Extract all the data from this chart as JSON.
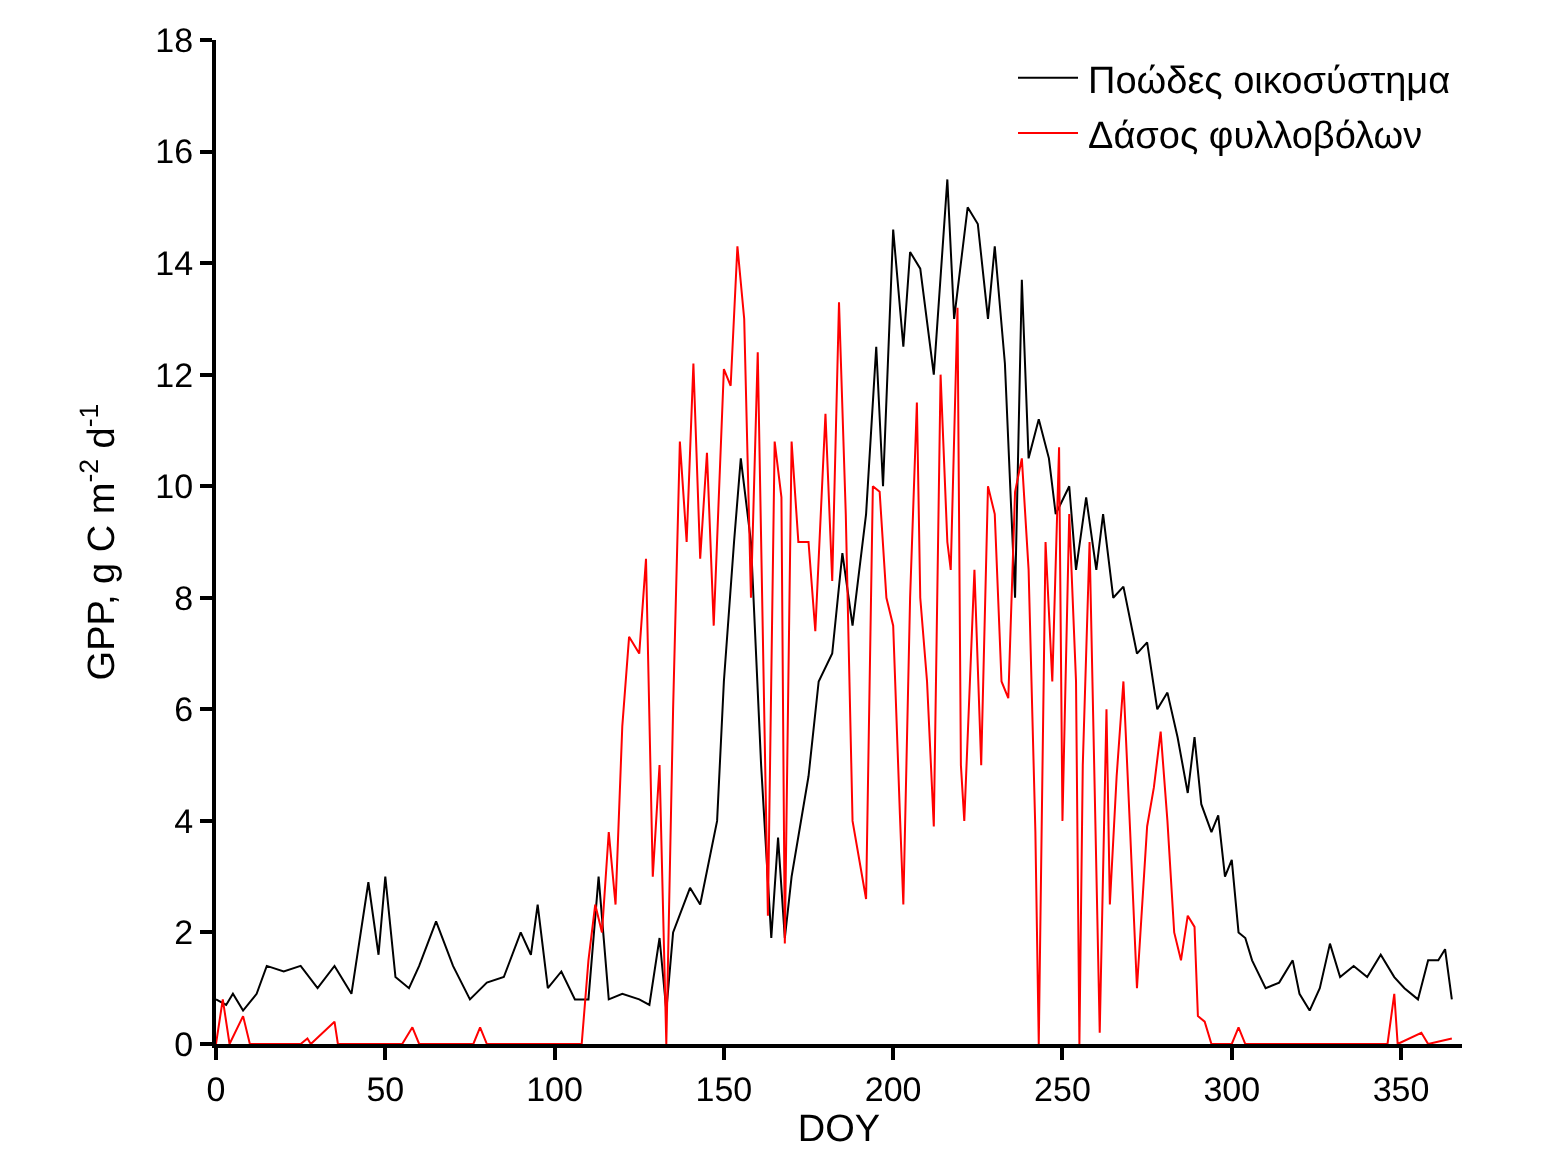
{
  "chart_data": {
    "type": "line",
    "xlabel": "DOY",
    "ylabel": "GPP, g C m$^{-2}$ d$^{-1}$",
    "xlim": [
      0,
      368
    ],
    "xticks": [
      0,
      50,
      100,
      150,
      200,
      250,
      300,
      350
    ],
    "ylim": [
      0,
      18
    ],
    "yticks": [
      0,
      2,
      4,
      6,
      8,
      10,
      12,
      14,
      16,
      18
    ],
    "legend": "top right",
    "marker": "none",
    "line_style": "solid",
    "series": [
      {
        "name": "Ποώδες οικοσύστημα",
        "color": "#000000",
        "x": [
          0,
          3,
          5,
          8,
          12,
          15,
          20,
          25,
          30,
          35,
          40,
          45,
          48,
          50,
          53,
          57,
          60,
          65,
          70,
          75,
          80,
          85,
          90,
          93,
          95,
          98,
          102,
          106,
          110,
          113,
          116,
          120,
          125,
          128,
          131,
          133,
          135,
          140,
          143,
          148,
          150,
          153,
          155,
          158,
          161,
          164,
          166,
          168,
          170,
          175,
          178,
          182,
          185,
          188,
          192,
          195,
          197,
          200,
          203,
          205,
          208,
          212,
          216,
          218,
          222,
          225,
          228,
          230,
          233,
          236,
          238,
          240,
          243,
          246,
          248,
          252,
          254,
          257,
          260,
          262,
          265,
          268,
          272,
          275,
          278,
          281,
          284,
          287,
          289,
          291,
          294,
          296,
          298,
          300,
          302,
          304,
          306,
          310,
          314,
          318,
          320,
          323,
          326,
          329,
          332,
          336,
          340,
          344,
          348,
          351,
          355,
          358,
          361,
          363,
          365
        ],
        "values": [
          0.8,
          0.7,
          0.9,
          0.6,
          0.9,
          1.4,
          1.3,
          1.4,
          1.0,
          1.4,
          0.9,
          2.9,
          1.6,
          3.0,
          1.2,
          1.0,
          1.4,
          2.2,
          1.4,
          0.8,
          1.1,
          1.2,
          2.0,
          1.6,
          2.5,
          1.0,
          1.3,
          0.8,
          0.8,
          3.0,
          0.8,
          0.9,
          0.8,
          0.7,
          1.9,
          0.6,
          2.0,
          2.8,
          2.5,
          4.0,
          6.5,
          9.0,
          10.5,
          9.0,
          5.0,
          1.9,
          3.7,
          1.9,
          3.0,
          4.8,
          6.5,
          7.0,
          8.8,
          7.5,
          9.5,
          12.5,
          10.0,
          14.6,
          12.5,
          14.2,
          13.9,
          12.0,
          15.5,
          13.0,
          15.0,
          14.7,
          13.0,
          14.3,
          12.2,
          8.0,
          13.7,
          10.5,
          11.2,
          10.5,
          9.5,
          10.0,
          8.5,
          9.8,
          8.5,
          9.5,
          8.0,
          8.2,
          7.0,
          7.2,
          6.0,
          6.3,
          5.5,
          4.5,
          5.5,
          4.3,
          3.8,
          4.1,
          3.0,
          3.3,
          2.0,
          1.9,
          1.5,
          1.0,
          1.1,
          1.5,
          0.9,
          0.6,
          1.0,
          1.8,
          1.2,
          1.4,
          1.2,
          1.6,
          1.2,
          1.0,
          0.8,
          1.5,
          1.5,
          1.7,
          0.8
        ]
      },
      {
        "name": "Δάσος φυλλοβόλων",
        "color": "#ff0000",
        "x": [
          0,
          2,
          4,
          8,
          10,
          25,
          27,
          28,
          35,
          36,
          55,
          58,
          60,
          76,
          78,
          80,
          108,
          110,
          112,
          114,
          116,
          118,
          120,
          122,
          125,
          127,
          129,
          131,
          133,
          135,
          137,
          139,
          141,
          143,
          145,
          147,
          150,
          152,
          154,
          156,
          158,
          160,
          163,
          165,
          167,
          168,
          170,
          172,
          175,
          177,
          180,
          182,
          184,
          186,
          188,
          192,
          194,
          196,
          198,
          200,
          202,
          203,
          205,
          207,
          208,
          210,
          212,
          214,
          216,
          217,
          219,
          220,
          221,
          224,
          226,
          228,
          230,
          232,
          234,
          236,
          238,
          240,
          242,
          243,
          245,
          247,
          249,
          250,
          252,
          254,
          255,
          256,
          258,
          261,
          263,
          264,
          266,
          268,
          270,
          272,
          275,
          277,
          279,
          281,
          283,
          285,
          287,
          289,
          290,
          292,
          294,
          300,
          302,
          304,
          346,
          348,
          349,
          356,
          358,
          365
        ],
        "values": [
          0,
          0.8,
          0,
          0.5,
          0,
          0,
          0.1,
          0,
          0.4,
          0,
          0,
          0.3,
          0,
          0,
          0.3,
          0,
          0,
          1.5,
          2.5,
          2.0,
          3.8,
          2.5,
          5.7,
          7.3,
          7.0,
          8.7,
          3.0,
          5.0,
          0,
          6.0,
          10.8,
          9.0,
          12.2,
          8.7,
          10.6,
          7.5,
          12.1,
          11.8,
          14.3,
          13.0,
          8.0,
          12.4,
          2.3,
          10.8,
          9.8,
          1.8,
          10.8,
          9.0,
          9.0,
          7.4,
          11.3,
          8.3,
          13.3,
          9.5,
          4.0,
          2.6,
          10.0,
          9.9,
          8.0,
          7.5,
          4.1,
          2.5,
          8.0,
          11.5,
          8.0,
          6.5,
          3.9,
          12.0,
          9.0,
          8.5,
          13.2,
          5.0,
          4.0,
          8.5,
          5.0,
          10.0,
          9.5,
          6.5,
          6.2,
          9.9,
          10.5,
          8.5,
          3.8,
          0,
          9.0,
          6.5,
          10.7,
          4.0,
          9.5,
          6.5,
          0,
          5.0,
          9.0,
          0.2,
          6.0,
          2.5,
          4.8,
          6.5,
          3.8,
          1.0,
          3.9,
          4.6,
          5.6,
          4.0,
          2.0,
          1.5,
          2.3,
          2.1,
          0.5,
          0.4,
          0,
          0,
          0.3,
          0,
          0,
          0.9,
          0,
          0.2,
          0,
          0.1
        ]
      }
    ]
  }
}
